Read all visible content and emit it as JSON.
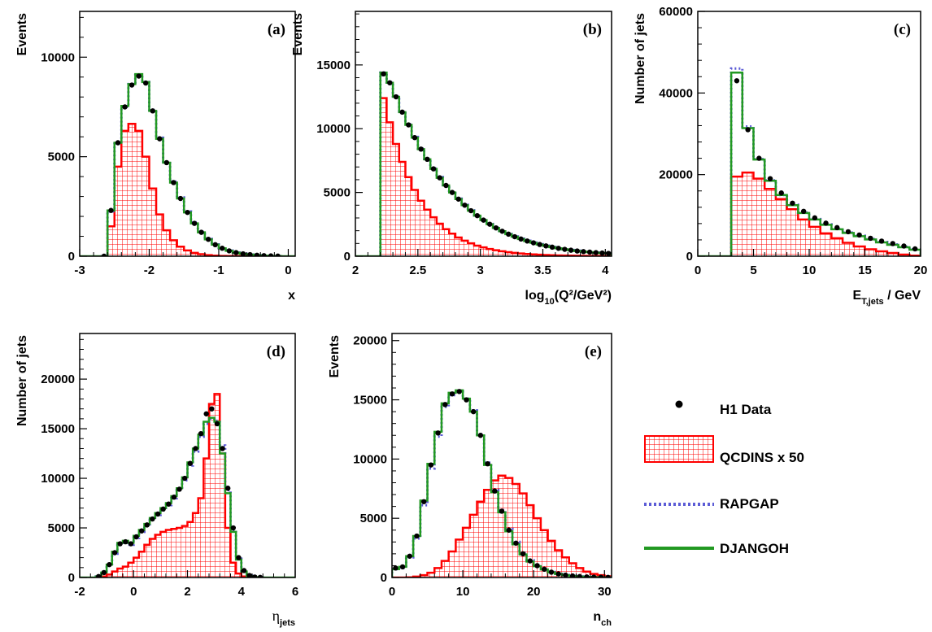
{
  "colors": {
    "data": "#000000",
    "qcdins": "#ff0000",
    "rapgap": "#5c5cd6",
    "djangoh": "#229922"
  },
  "legend": {
    "data_label": "H1 Data",
    "qcdins_label": "QCDINS x 50",
    "rapgap_label": "RAPGAP",
    "djangoh_label": "DJANGOH"
  },
  "chart_data": [
    {
      "id": "a",
      "tag": "(a)",
      "type": "line",
      "xlabel": "x",
      "xlabel_sub": "",
      "xlabel_sup": "",
      "xlabel_tail": "",
      "ylabel": "Events",
      "xlim": [
        -3,
        0.1
      ],
      "ylim": [
        0,
        12300
      ],
      "xticks": [
        -3,
        -2,
        -1,
        0
      ],
      "yticks": [
        0,
        5000,
        10000
      ],
      "x_edges": [
        -2.7,
        -2.6,
        -2.5,
        -2.4,
        -2.3,
        -2.2,
        -2.1,
        -2.0,
        -1.9,
        -1.8,
        -1.7,
        -1.6,
        -1.5,
        -1.4,
        -1.3,
        -1.2,
        -1.1,
        -1.0,
        -0.9,
        -0.8,
        -0.7,
        -0.6,
        -0.5,
        -0.4,
        -0.3,
        -0.2,
        -0.1
      ],
      "series": [
        {
          "name": "H1 Data",
          "kind": "points",
          "values": [
            0,
            2300,
            5700,
            7500,
            8600,
            9050,
            8700,
            7300,
            5900,
            4700,
            3700,
            2900,
            2200,
            1650,
            1200,
            850,
            580,
            400,
            270,
            180,
            120,
            80,
            50,
            30,
            15,
            5
          ]
        },
        {
          "name": "QCDINS x 50",
          "kind": "hatched",
          "values": [
            0,
            1500,
            4500,
            6300,
            6650,
            6300,
            5000,
            3400,
            2100,
            1300,
            800,
            480,
            290,
            170,
            100,
            55,
            30,
            15,
            8,
            4,
            2,
            1,
            0,
            0,
            0,
            0
          ]
        },
        {
          "name": "RAPGAP",
          "kind": "dotted",
          "values": [
            0,
            2250,
            5650,
            7500,
            8650,
            9100,
            8750,
            7350,
            5950,
            4750,
            3750,
            2950,
            2250,
            1700,
            1230,
            870,
            590,
            410,
            280,
            185,
            125,
            82,
            52,
            32,
            16,
            6
          ]
        },
        {
          "name": "DJANGOH",
          "kind": "solid",
          "values": [
            0,
            2300,
            5700,
            7550,
            8650,
            9150,
            8750,
            7300,
            5900,
            4700,
            3700,
            2900,
            2200,
            1650,
            1200,
            850,
            580,
            400,
            270,
            180,
            120,
            80,
            50,
            30,
            15,
            5
          ]
        }
      ]
    },
    {
      "id": "b",
      "tag": "(b)",
      "type": "line",
      "xlabel": "log",
      "xlabel_sub": "10",
      "xlabel_sup": "2",
      "xlabel_tail": "(Q²/GeV²)",
      "ylabel": "Events",
      "xlim": [
        2,
        4.05
      ],
      "ylim": [
        0,
        19200
      ],
      "xticks": [
        2,
        2.5,
        3,
        3.5,
        4
      ],
      "yticks": [
        0,
        5000,
        10000,
        15000
      ],
      "x_edges": [
        2.2,
        2.25,
        2.3,
        2.35,
        2.4,
        2.45,
        2.5,
        2.55,
        2.6,
        2.65,
        2.7,
        2.75,
        2.8,
        2.85,
        2.9,
        2.95,
        3.0,
        3.05,
        3.1,
        3.15,
        3.2,
        3.25,
        3.3,
        3.35,
        3.4,
        3.45,
        3.5,
        3.55,
        3.6,
        3.65,
        3.7,
        3.75,
        3.8,
        3.85,
        3.9,
        3.95,
        4.0,
        4.05
      ],
      "series": [
        {
          "name": "H1 Data",
          "kind": "points",
          "values": [
            14300,
            13600,
            12500,
            11300,
            10300,
            9300,
            8400,
            7600,
            6850,
            6150,
            5550,
            5000,
            4480,
            4000,
            3570,
            3180,
            2830,
            2510,
            2220,
            1960,
            1730,
            1530,
            1350,
            1190,
            1050,
            920,
            810,
            710,
            620,
            540,
            470,
            410,
            360,
            320,
            280,
            250,
            220
          ]
        },
        {
          "name": "QCDINS x 50",
          "kind": "hatched",
          "values": [
            12400,
            10500,
            8800,
            7400,
            6200,
            5200,
            4350,
            3650,
            3050,
            2550,
            2120,
            1770,
            1470,
            1220,
            1010,
            830,
            690,
            570,
            470,
            390,
            320,
            260,
            215,
            175,
            145,
            120,
            98,
            80,
            66,
            54,
            44,
            36,
            30,
            24,
            20,
            16,
            13
          ]
        },
        {
          "name": "RAPGAP",
          "kind": "dotted",
          "values": [
            14400,
            13650,
            12550,
            11350,
            10350,
            9350,
            8450,
            7650,
            6900,
            6200,
            5580,
            5030,
            4510,
            4030,
            3600,
            3200,
            2850,
            2530,
            2240,
            1980,
            1750,
            1550,
            1370,
            1210,
            1070,
            940,
            830,
            730,
            640,
            560,
            490,
            430,
            380,
            330,
            290,
            260,
            230
          ]
        },
        {
          "name": "DJANGOH",
          "kind": "solid",
          "values": [
            14400,
            13600,
            12500,
            11300,
            10300,
            9300,
            8400,
            7600,
            6850,
            6150,
            5550,
            5000,
            4480,
            4000,
            3570,
            3180,
            2830,
            2510,
            2220,
            1960,
            1730,
            1530,
            1350,
            1190,
            1050,
            920,
            810,
            710,
            620,
            540,
            470,
            410,
            360,
            320,
            280,
            250,
            220
          ]
        }
      ]
    },
    {
      "id": "c",
      "tag": "(c)",
      "type": "line",
      "xlabel": "E",
      "xlabel_sub": "T,jets",
      "xlabel_sup": "",
      "xlabel_tail": " / GeV",
      "ylabel": "Number of jets",
      "xlim": [
        0,
        20
      ],
      "ylim": [
        0,
        60000
      ],
      "xticks": [
        0,
        5,
        10,
        15,
        20
      ],
      "yticks": [
        0,
        20000,
        40000,
        60000
      ],
      "x_edges": [
        3,
        4,
        5,
        6,
        7,
        8,
        9,
        10,
        11,
        12,
        13,
        14,
        15,
        16,
        17,
        18,
        19,
        20
      ],
      "series": [
        {
          "name": "H1 Data",
          "kind": "points",
          "values": [
            43000,
            31000,
            24000,
            19000,
            15500,
            13000,
            11000,
            9400,
            8100,
            7000,
            6000,
            5200,
            4400,
            3700,
            3100,
            2500,
            1800
          ]
        },
        {
          "name": "QCDINS x 50",
          "kind": "hatched",
          "values": [
            19500,
            20500,
            19000,
            16500,
            14000,
            11500,
            9000,
            7200,
            5600,
            4400,
            3300,
            2400,
            1700,
            1200,
            800,
            400,
            150
          ]
        },
        {
          "name": "RAPGAP",
          "kind": "dotted",
          "values": [
            46000,
            31800,
            23800,
            18600,
            15000,
            12600,
            10700,
            9100,
            7800,
            6700,
            5800,
            5000,
            4200,
            3500,
            2900,
            2300,
            1700
          ]
        },
        {
          "name": "DJANGOH",
          "kind": "solid",
          "values": [
            45000,
            31400,
            23700,
            18500,
            15000,
            12500,
            10600,
            9000,
            7700,
            6600,
            5700,
            4900,
            4100,
            3400,
            2800,
            2200,
            1600
          ]
        }
      ]
    },
    {
      "id": "d",
      "tag": "(d)",
      "type": "line",
      "xlabel": "η",
      "xlabel_sub": "jets",
      "xlabel_sup": "",
      "xlabel_tail": "",
      "ylabel": "Number of jets",
      "xlim": [
        -2,
        6
      ],
      "ylim": [
        0,
        24600
      ],
      "xticks": [
        -2,
        0,
        2,
        4,
        6
      ],
      "yticks": [
        0,
        5000,
        10000,
        15000,
        20000
      ],
      "x_edges": [
        -1.4,
        -1.2,
        -1.0,
        -0.8,
        -0.6,
        -0.4,
        -0.2,
        0.0,
        0.2,
        0.4,
        0.6,
        0.8,
        1.0,
        1.2,
        1.4,
        1.6,
        1.8,
        2.0,
        2.2,
        2.4,
        2.6,
        2.8,
        3.0,
        3.2,
        3.4,
        3.6,
        3.8,
        4.0,
        4.2,
        4.4,
        4.6,
        4.8
      ],
      "series": [
        {
          "name": "H1 Data",
          "kind": "points",
          "values": [
            100,
            500,
            1300,
            2500,
            3400,
            3600,
            3400,
            4100,
            4700,
            5300,
            5900,
            6400,
            6900,
            7400,
            8100,
            8900,
            10000,
            11500,
            13000,
            14500,
            16500,
            17000,
            15500,
            13000,
            9000,
            5000,
            2000,
            700,
            200,
            50,
            10
          ]
        },
        {
          "name": "QCDINS x 50",
          "kind": "hatched",
          "values": [
            0,
            100,
            300,
            600,
            900,
            1100,
            1500,
            2000,
            2600,
            3300,
            3900,
            4300,
            4600,
            4800,
            4900,
            5000,
            5200,
            5600,
            6500,
            8000,
            12000,
            17500,
            18500,
            12500,
            5000,
            1500,
            400,
            100,
            20,
            5,
            0
          ]
        },
        {
          "name": "RAPGAP",
          "kind": "dotted",
          "values": [
            100,
            400,
            1200,
            2400,
            3300,
            3500,
            3300,
            4000,
            4600,
            5200,
            5800,
            6300,
            6800,
            7300,
            8000,
            8800,
            9800,
            11300,
            12700,
            14200,
            15500,
            16000,
            15800,
            13300,
            8800,
            4800,
            1900,
            650,
            180,
            45,
            10
          ]
        },
        {
          "name": "DJANGOH",
          "kind": "solid",
          "values": [
            100,
            500,
            1300,
            2600,
            3500,
            3700,
            3500,
            4200,
            4800,
            5400,
            6000,
            6500,
            7000,
            7500,
            8200,
            9000,
            10100,
            11600,
            13000,
            14400,
            15700,
            16100,
            15700,
            12500,
            8500,
            4600,
            1800,
            600,
            150,
            40,
            10
          ]
        }
      ]
    },
    {
      "id": "e",
      "tag": "(e)",
      "type": "line",
      "xlabel": "n",
      "xlabel_sub": "ch",
      "xlabel_sup": "",
      "xlabel_tail": "",
      "ylabel": "Events",
      "xlim": [
        0,
        31
      ],
      "ylim": [
        0,
        20600
      ],
      "xticks": [
        0,
        10,
        20,
        30
      ],
      "yticks": [
        0,
        5000,
        10000,
        15000,
        20000
      ],
      "x_edges": [
        0,
        1,
        2,
        3,
        4,
        5,
        6,
        7,
        8,
        9,
        10,
        11,
        12,
        13,
        14,
        15,
        16,
        17,
        18,
        19,
        20,
        21,
        22,
        23,
        24,
        25,
        26,
        27,
        28,
        29,
        30,
        31
      ],
      "series": [
        {
          "name": "H1 Data",
          "kind": "points",
          "values": [
            800,
            900,
            1800,
            3500,
            6400,
            9500,
            12200,
            14600,
            15500,
            15700,
            15000,
            14000,
            12000,
            9600,
            7300,
            5600,
            4000,
            2900,
            2000,
            1400,
            1000,
            700,
            450,
            300,
            200,
            130,
            80,
            50,
            30,
            20,
            10
          ]
        },
        {
          "name": "QCDINS x 50",
          "kind": "hatched",
          "values": [
            0,
            0,
            20,
            80,
            200,
            400,
            800,
            1400,
            2200,
            3200,
            4200,
            5300,
            6400,
            7400,
            8200,
            8600,
            8400,
            7900,
            7100,
            6100,
            5000,
            4000,
            3100,
            2300,
            1700,
            1200,
            800,
            500,
            300,
            200,
            100
          ]
        },
        {
          "name": "RAPGAP",
          "kind": "dotted",
          "values": [
            700,
            800,
            1700,
            3300,
            6100,
            9200,
            11900,
            14400,
            15400,
            15700,
            15100,
            14100,
            12100,
            9700,
            7400,
            5700,
            4100,
            3000,
            2050,
            1450,
            1050,
            720,
            460,
            310,
            210,
            135,
            85,
            52,
            32,
            21,
            11
          ]
        },
        {
          "name": "DJANGOH",
          "kind": "solid",
          "values": [
            700,
            900,
            1800,
            3500,
            6500,
            9600,
            12300,
            14700,
            15600,
            15800,
            15100,
            14000,
            12000,
            9500,
            7200,
            5500,
            3900,
            2800,
            1950,
            1350,
            950,
            680,
            440,
            300,
            200,
            130,
            80,
            50,
            30,
            20,
            10
          ]
        }
      ]
    }
  ]
}
